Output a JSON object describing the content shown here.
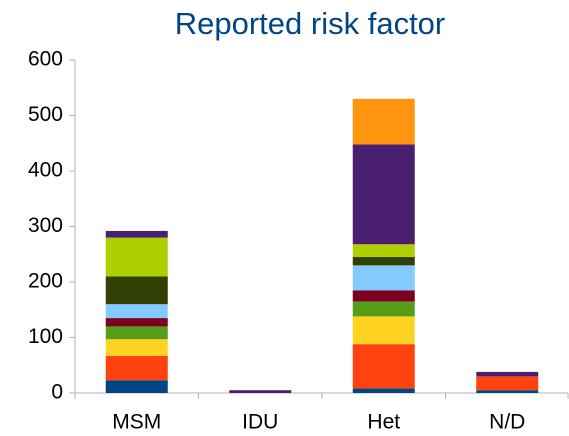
{
  "chart_data": {
    "type": "stacked_bar",
    "title": "Reported risk factor",
    "categories": [
      "MSM",
      "IDU",
      "Het",
      "N/D"
    ],
    "series": [
      {
        "color": "#004586",
        "values": [
          23,
          0,
          8,
          5
        ]
      },
      {
        "color": "#ff420e",
        "values": [
          44,
          0,
          80,
          25
        ]
      },
      {
        "color": "#ffd320",
        "values": [
          30,
          0,
          50,
          0
        ]
      },
      {
        "color": "#579d1c",
        "values": [
          23,
          0,
          27,
          0
        ]
      },
      {
        "color": "#7e0021",
        "values": [
          15,
          0,
          20,
          0
        ]
      },
      {
        "color": "#83caff",
        "values": [
          25,
          0,
          45,
          0
        ]
      },
      {
        "color": "#314004",
        "values": [
          50,
          0,
          15,
          0
        ]
      },
      {
        "color": "#aecf00",
        "values": [
          70,
          0,
          23,
          0
        ]
      },
      {
        "color": "#4b1f6f",
        "values": [
          12,
          5,
          180,
          8
        ]
      },
      {
        "color": "#ff950e",
        "values": [
          0,
          0,
          82,
          0
        ]
      }
    ],
    "ylim": [
      0,
      600
    ],
    "yticks": [
      0,
      100,
      200,
      300,
      400,
      500,
      600
    ],
    "grid": false
  }
}
